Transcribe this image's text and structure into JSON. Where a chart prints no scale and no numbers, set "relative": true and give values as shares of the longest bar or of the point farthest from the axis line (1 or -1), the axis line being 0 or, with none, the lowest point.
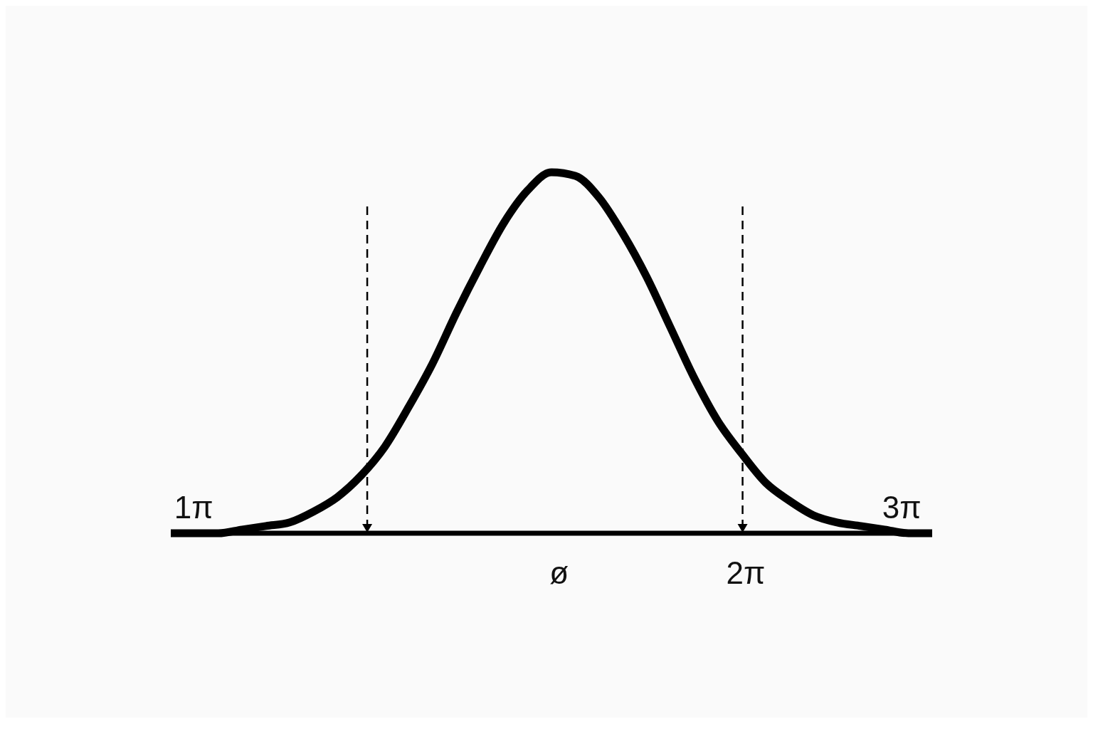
{
  "chart_data": {
    "type": "line",
    "relative": true,
    "color": "#000000",
    "marker": "none",
    "line_style": "solid",
    "categories": [
      null,
      null,
      null,
      null,
      null,
      null,
      null,
      null,
      null,
      null,
      null,
      null,
      null,
      null,
      null,
      null,
      null,
      null,
      null,
      null,
      null,
      null,
      null,
      null,
      null,
      null,
      null,
      null,
      null,
      null,
      null,
      null,
      null
    ],
    "values": [
      0,
      0,
      0,
      0.01,
      0.02,
      0.03,
      0.06,
      0.1,
      0.16,
      0.24,
      0.35,
      0.47,
      0.61,
      0.74,
      0.86,
      0.95,
      1,
      0.99,
      0.93,
      0.83,
      0.71,
      0.57,
      0.43,
      0.31,
      0.22,
      0.14,
      0.09,
      0.05,
      0.03,
      0.02,
      0.01,
      0,
      0
    ],
    "annotations": [
      "1π",
      "ø",
      "2π",
      "3π"
    ]
  }
}
